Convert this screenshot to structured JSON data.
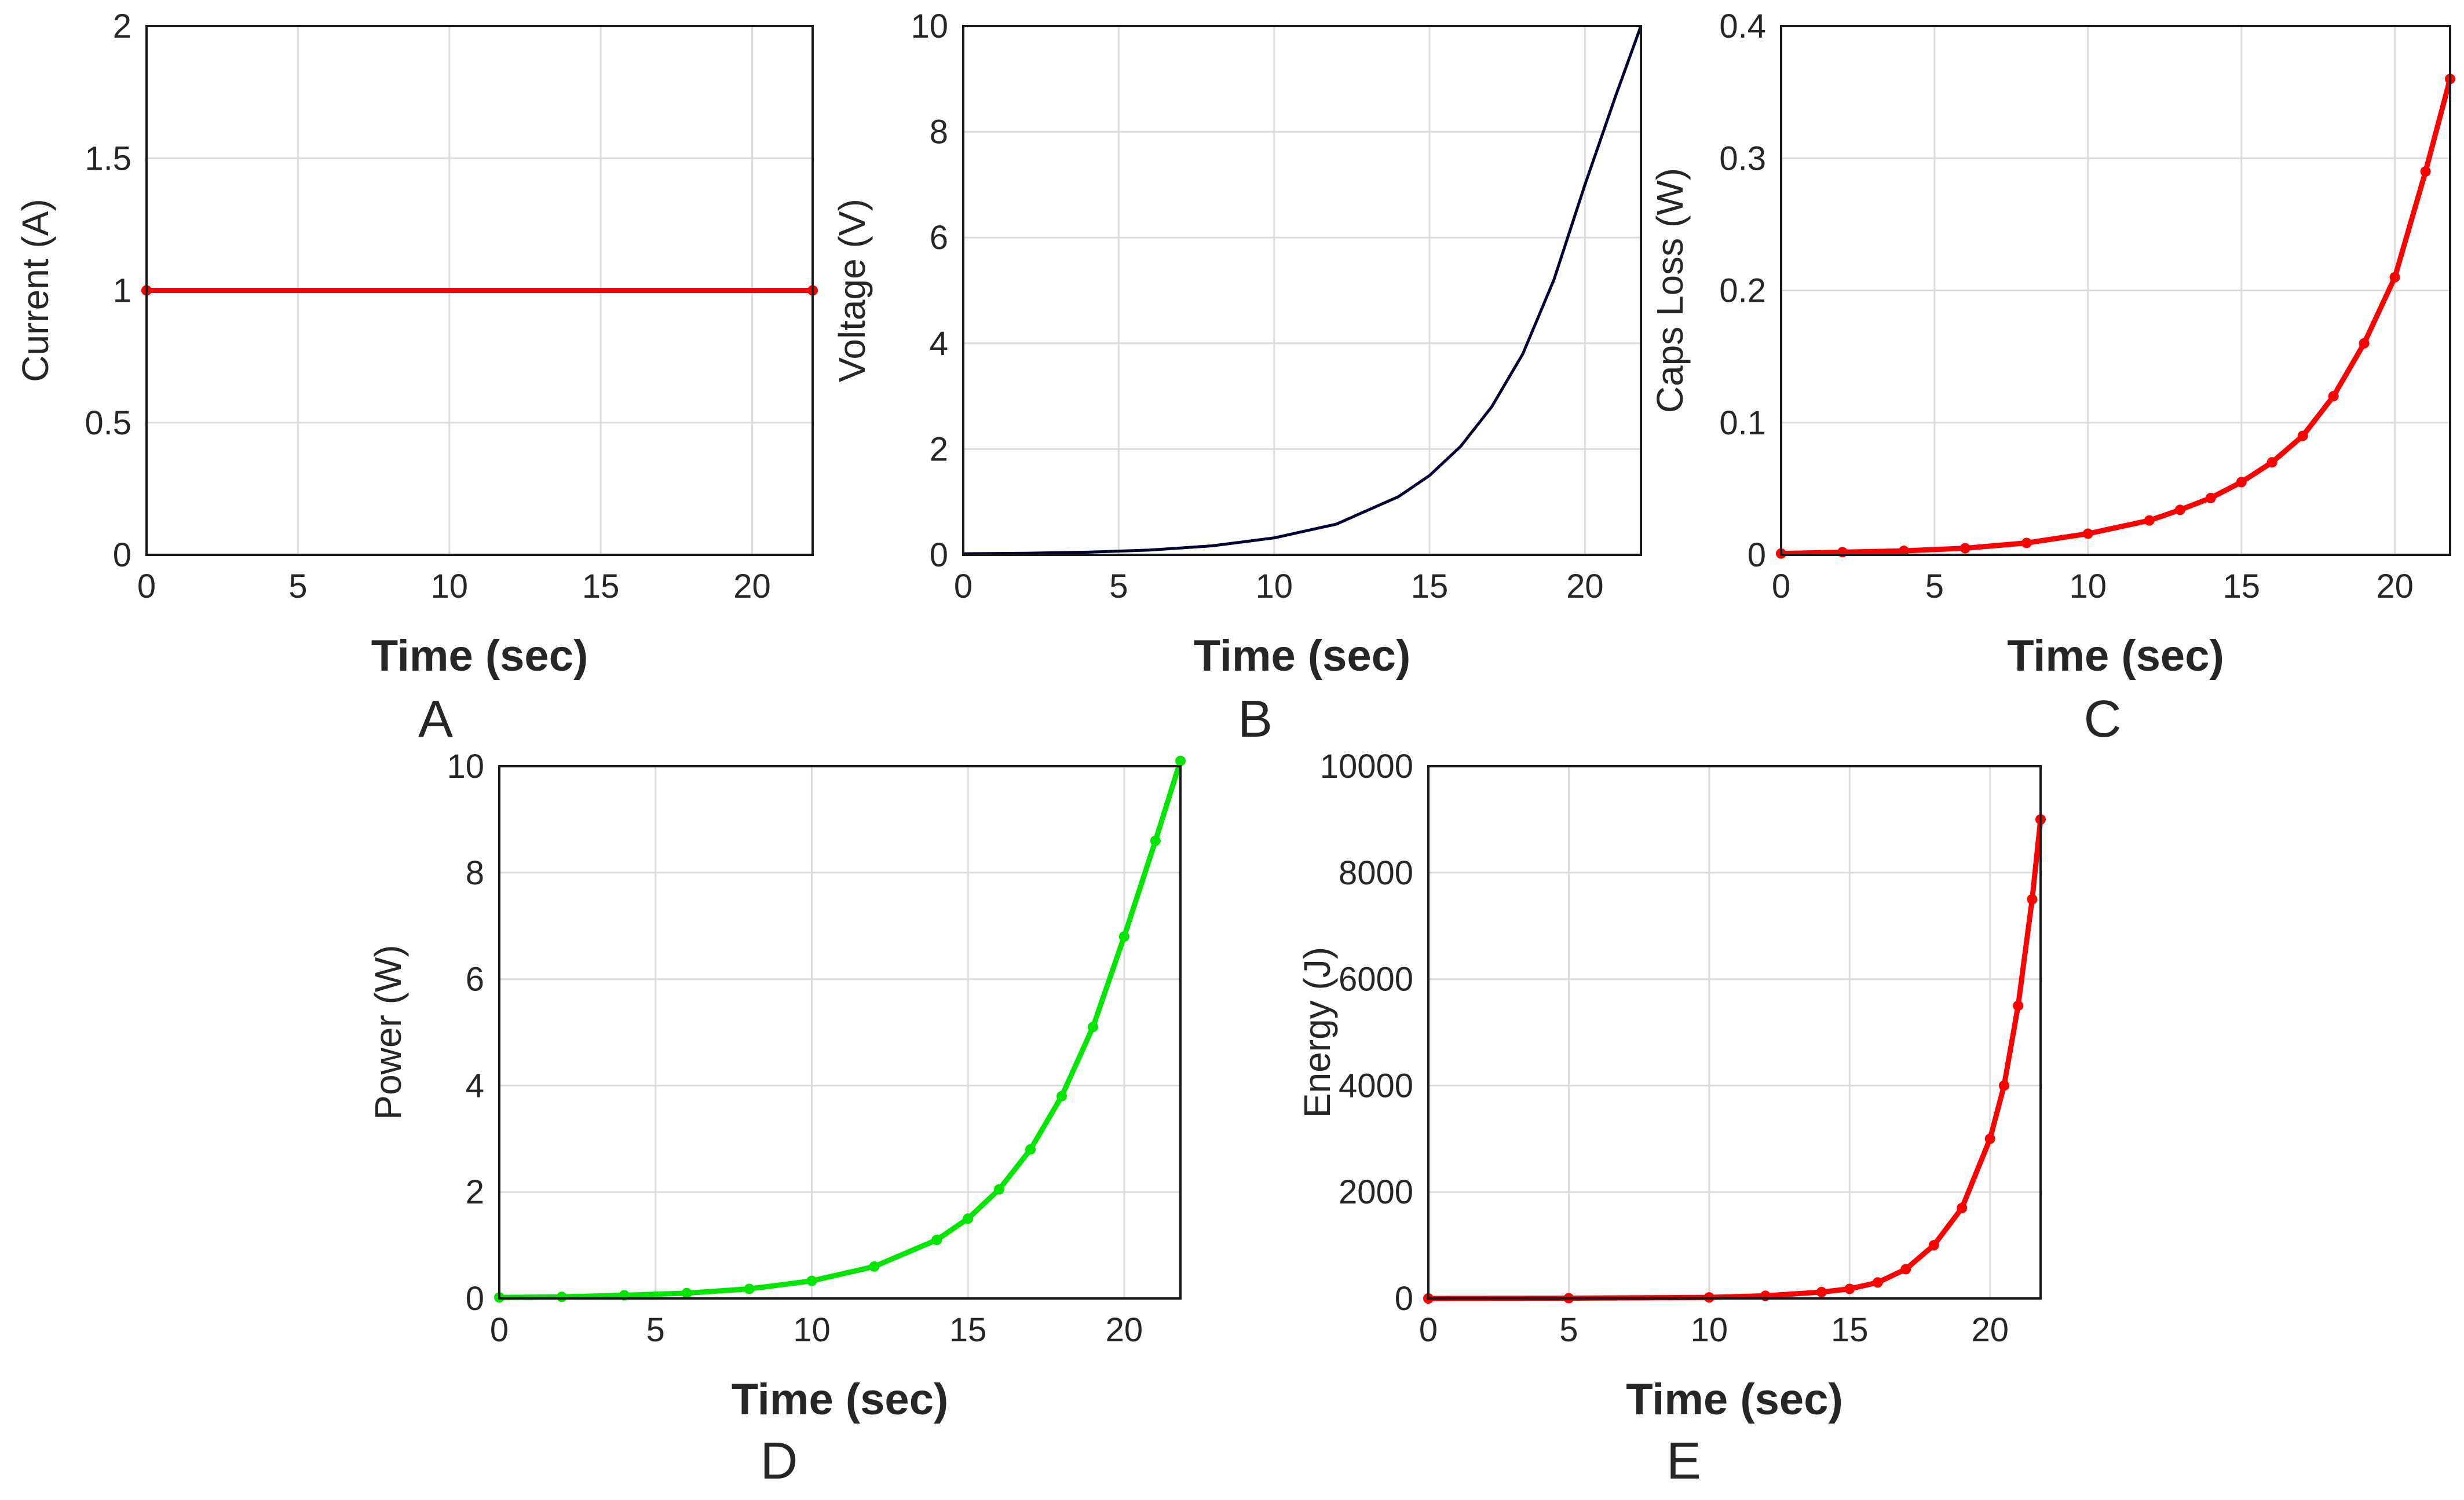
{
  "chart_data": [
    {
      "type": "line",
      "panel_label": "A",
      "xlabel": "Time (sec)",
      "ylabel": "Current (A)",
      "xlim": [
        0,
        22
      ],
      "ylim": [
        0,
        2
      ],
      "xticks": [
        "0",
        "5",
        "10",
        "15",
        "20"
      ],
      "yticks": [
        "0",
        "0.5",
        "1",
        "1.5",
        "2"
      ],
      "grid": true,
      "color": "#ff0000",
      "markers": true,
      "series": [
        {
          "name": "Current",
          "x": [
            0,
            22
          ],
          "y": [
            1,
            1
          ]
        }
      ]
    },
    {
      "type": "line",
      "panel_label": "B",
      "xlabel": "Time (sec)",
      "ylabel": "Voltage (V)",
      "xlim": [
        0,
        21.8
      ],
      "ylim": [
        0,
        10
      ],
      "xticks": [
        "0",
        "5",
        "10",
        "15",
        "20"
      ],
      "yticks": [
        "0",
        "2",
        "4",
        "6",
        "8",
        "10"
      ],
      "grid": true,
      "color": "#000033",
      "markers": false,
      "series": [
        {
          "name": "Voltage",
          "x": [
            0,
            2,
            4,
            6,
            8,
            10,
            12,
            14,
            15,
            16,
            17,
            18,
            19,
            20,
            21,
            21.8
          ],
          "y": [
            0.02,
            0.03,
            0.05,
            0.09,
            0.17,
            0.32,
            0.58,
            1.1,
            1.5,
            2.05,
            2.8,
            3.8,
            5.2,
            7.0,
            8.7,
            10.0
          ]
        }
      ]
    },
    {
      "type": "line",
      "panel_label": "C",
      "xlabel": "Time (sec)",
      "ylabel": "Caps Loss (W)",
      "xlim": [
        0,
        21.8
      ],
      "ylim": [
        0,
        0.4
      ],
      "xticks": [
        "0",
        "5",
        "10",
        "15",
        "20"
      ],
      "yticks": [
        "0",
        "0.1",
        "0.2",
        "0.3",
        "0.4"
      ],
      "grid": true,
      "color": "#ff0000",
      "markers": true,
      "series": [
        {
          "name": "Caps Loss",
          "x": [
            0,
            2,
            4,
            6,
            8,
            10,
            12,
            13,
            14,
            15,
            16,
            17,
            18,
            19,
            20,
            21,
            21.8
          ],
          "y": [
            0.001,
            0.002,
            0.003,
            0.005,
            0.009,
            0.016,
            0.026,
            0.034,
            0.043,
            0.055,
            0.07,
            0.09,
            0.12,
            0.16,
            0.21,
            0.29,
            0.36
          ]
        }
      ]
    },
    {
      "type": "line",
      "panel_label": "D",
      "xlabel": "Time (sec)",
      "ylabel": "Power (W)",
      "xlim": [
        0,
        21.8
      ],
      "ylim": [
        0,
        10
      ],
      "xticks": [
        "0",
        "5",
        "10",
        "15",
        "20"
      ],
      "yticks": [
        "0",
        "2",
        "4",
        "6",
        "8",
        "10"
      ],
      "grid": true,
      "color": "#00e600",
      "markers": true,
      "series": [
        {
          "name": "Power",
          "x": [
            0,
            2,
            4,
            6,
            8,
            10,
            12,
            14,
            15,
            16,
            17,
            18,
            19,
            20,
            21,
            21.8
          ],
          "y": [
            0.02,
            0.03,
            0.06,
            0.1,
            0.18,
            0.33,
            0.6,
            1.1,
            1.5,
            2.05,
            2.8,
            3.8,
            5.1,
            6.8,
            8.6,
            10.1
          ]
        }
      ]
    },
    {
      "type": "line",
      "panel_label": "E",
      "xlabel": "Time (sec)",
      "ylabel": "Energy (J)",
      "xlim": [
        0,
        21.8
      ],
      "ylim": [
        0,
        10000
      ],
      "xticks": [
        "0",
        "5",
        "10",
        "15",
        "20"
      ],
      "yticks": [
        "0",
        "2000",
        "4000",
        "6000",
        "8000",
        "10000"
      ],
      "grid": true,
      "color": "#ff0000",
      "markers": true,
      "series": [
        {
          "name": "Energy",
          "x": [
            0,
            5,
            10,
            12,
            14,
            15,
            16,
            17,
            18,
            19,
            20,
            20.5,
            21,
            21.5,
            21.8
          ],
          "y": [
            0,
            5,
            20,
            50,
            120,
            180,
            300,
            550,
            1000,
            1700,
            3000,
            4000,
            5500,
            7500,
            9000
          ]
        }
      ]
    }
  ]
}
